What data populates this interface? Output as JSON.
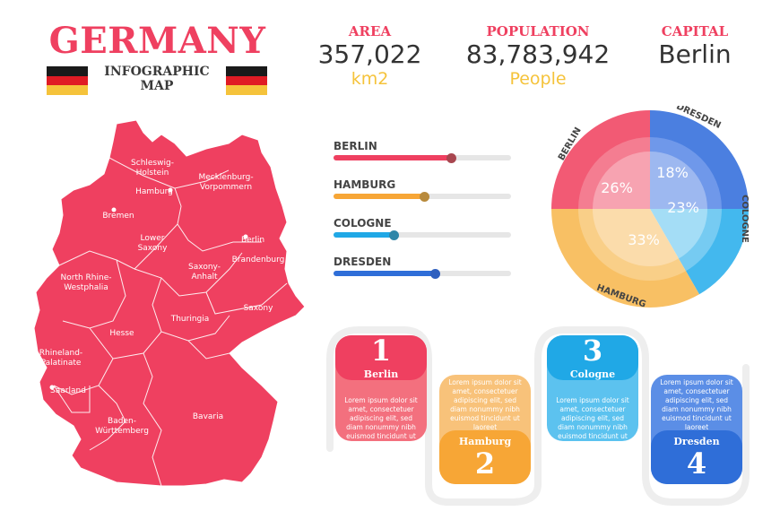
{
  "header": {
    "title": "GERMANY",
    "subtitle_line1": "INFOGRAPHIC",
    "subtitle_line2": "MAP"
  },
  "colors": {
    "accent": "#ef4060",
    "flag_black": "#1a1a1a",
    "flag_red": "#e01b24",
    "flag_gold": "#f5c33b",
    "berlin": "#ef4060",
    "hamburg": "#f7a636",
    "cologne": "#20a8e6",
    "dresden": "#2f6ed8"
  },
  "stats": {
    "area_label": "AREA",
    "area_value": "357,022",
    "area_unit": "km2",
    "population_label": "POPULATION",
    "population_value": "83,783,942",
    "population_unit": "People",
    "capital_label": "CAPITAL",
    "capital_value": "Berlin"
  },
  "bars": [
    {
      "label": "BERLIN",
      "value": 0.66
    },
    {
      "label": "HAMBURG",
      "value": 0.51
    },
    {
      "label": "COLOGNE",
      "value": 0.34
    },
    {
      "label": "DRESDEN",
      "value": 0.57
    }
  ],
  "pie": {
    "labels": {
      "berlin": "BERLIN",
      "dresden": "DRESDEN",
      "cologne": "COLOGNE",
      "hamburg": "HAMBURG"
    },
    "values": {
      "berlin": "26%",
      "dresden": "18%",
      "cologne": "23%",
      "hamburg": "33%"
    }
  },
  "map": {
    "regions": {
      "schleswig": "Schleswig-\nHolstein",
      "hamburg": "Hamburg",
      "mecklenburg": "Mecklenburg-\nVorpommern",
      "bremen": "Bremen",
      "lower_saxony": "Lower\nSaxony",
      "berlin": "Berlin",
      "brandenburg": "Brandenburg",
      "nrw": "North Rhine-\nWestphalia",
      "saxony_anhalt": "Saxony-\nAnhalt",
      "saxony": "Saxony",
      "thuringia": "Thuringia",
      "hesse": "Hesse",
      "rhineland": "Rhineland-\nPalatinate",
      "saarland": "Saarland",
      "bavaria": "Bavaria",
      "baden": "Baden-\nWürttemberg"
    }
  },
  "cards": [
    {
      "number": "1",
      "name": "Berlin",
      "text": "Lorem ipsum dolor sit amet, consectetuer adipiscing elit, sed diam nonummy nibh euismod tincidunt ut laoreet"
    },
    {
      "number": "2",
      "name": "Hamburg",
      "text": "Lorem ipsum dolor sit amet, consectetuer adipiscing elit, sed diam nonummy nibh euismod tincidunt ut laoreet"
    },
    {
      "number": "3",
      "name": "Cologne",
      "text": "Lorem ipsum dolor sit amet, consectetuer adipiscing elit, sed diam nonummy nibh euismod tincidunt ut laoreet"
    },
    {
      "number": "4",
      "name": "Dresden",
      "text": "Lorem ipsum dolor sit amet, consectetuer adipiscing elit, sed diam nonummy nibh euismod tincidunt ut laoreet"
    }
  ]
}
